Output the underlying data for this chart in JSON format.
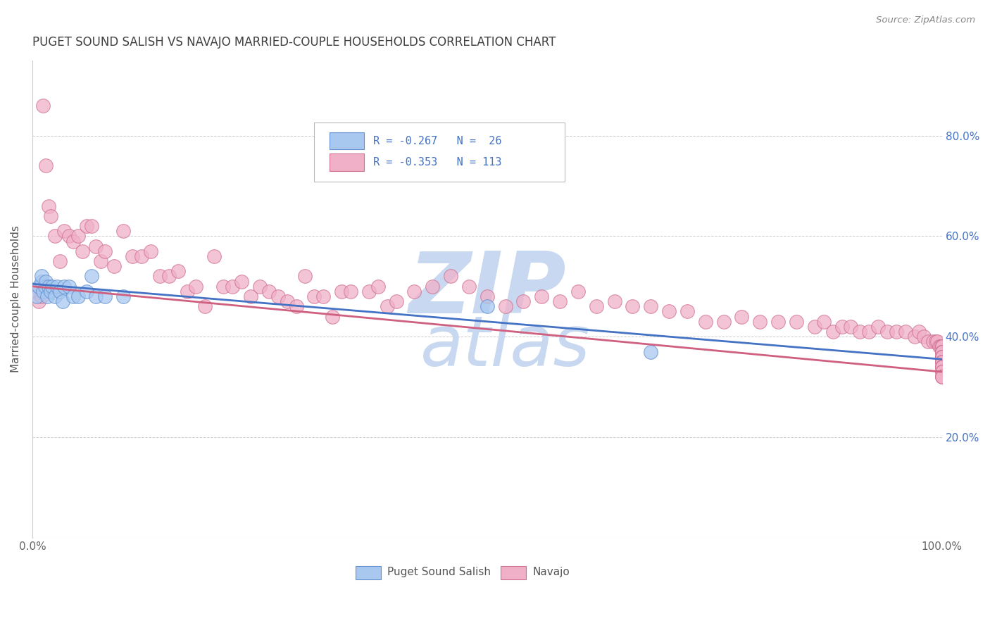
{
  "title": "PUGET SOUND SALISH VS NAVAJO MARRIED-COUPLE HOUSEHOLDS CORRELATION CHART",
  "source": "Source: ZipAtlas.com",
  "ylabel": "Married-couple Households",
  "legend_label1": "Puget Sound Salish",
  "legend_label2": "Navajo",
  "legend_r1": "R = -0.267",
  "legend_n1": "N =  26",
  "legend_r2": "R = -0.353",
  "legend_n2": "N = 113",
  "color_blue": "#a8c8f0",
  "color_pink": "#f0b0c8",
  "color_blue_edge": "#6090d0",
  "color_pink_edge": "#d07090",
  "trendline_blue": "#4472c4",
  "trendline_pink": "#d06080",
  "watermark_color": "#c8d8f0",
  "background": "#ffffff",
  "grid_color": "#cccccc",
  "title_color": "#404040",
  "right_axis_color": "#4472c4",
  "puget_x": [
    0.005,
    0.007,
    0.01,
    0.01,
    0.012,
    0.014,
    0.015,
    0.016,
    0.018,
    0.02,
    0.022,
    0.025,
    0.027,
    0.03,
    0.033,
    0.035,
    0.04,
    0.045,
    0.05,
    0.06,
    0.065,
    0.07,
    0.08,
    0.1,
    0.5,
    0.68
  ],
  "puget_y": [
    0.48,
    0.5,
    0.51,
    0.52,
    0.49,
    0.5,
    0.51,
    0.48,
    0.5,
    0.49,
    0.5,
    0.48,
    0.5,
    0.49,
    0.47,
    0.5,
    0.5,
    0.48,
    0.48,
    0.49,
    0.52,
    0.48,
    0.48,
    0.48,
    0.46,
    0.37
  ],
  "navajo_x": [
    0.005,
    0.007,
    0.01,
    0.012,
    0.015,
    0.018,
    0.02,
    0.025,
    0.03,
    0.035,
    0.04,
    0.045,
    0.05,
    0.055,
    0.06,
    0.065,
    0.07,
    0.075,
    0.08,
    0.09,
    0.1,
    0.11,
    0.12,
    0.13,
    0.14,
    0.15,
    0.16,
    0.17,
    0.18,
    0.19,
    0.2,
    0.21,
    0.22,
    0.23,
    0.24,
    0.25,
    0.26,
    0.27,
    0.28,
    0.29,
    0.3,
    0.31,
    0.32,
    0.33,
    0.34,
    0.35,
    0.37,
    0.38,
    0.39,
    0.4,
    0.42,
    0.44,
    0.46,
    0.48,
    0.5,
    0.52,
    0.54,
    0.56,
    0.58,
    0.6,
    0.62,
    0.64,
    0.66,
    0.68,
    0.7,
    0.72,
    0.74,
    0.76,
    0.78,
    0.8,
    0.82,
    0.84,
    0.86,
    0.87,
    0.88,
    0.89,
    0.9,
    0.91,
    0.92,
    0.93,
    0.94,
    0.95,
    0.96,
    0.97,
    0.975,
    0.98,
    0.985,
    0.99,
    0.993,
    0.995,
    0.997,
    0.999,
    1.0,
    1.0,
    1.0,
    1.0,
    1.0,
    1.0,
    1.0,
    1.0,
    1.0,
    1.0,
    1.0,
    1.0,
    1.0,
    1.0,
    1.0,
    1.0,
    1.0,
    1.0,
    1.0,
    1.0,
    1.0
  ],
  "navajo_y": [
    0.49,
    0.47,
    0.48,
    0.86,
    0.74,
    0.66,
    0.64,
    0.6,
    0.55,
    0.61,
    0.6,
    0.59,
    0.6,
    0.57,
    0.62,
    0.62,
    0.58,
    0.55,
    0.57,
    0.54,
    0.61,
    0.56,
    0.56,
    0.57,
    0.52,
    0.52,
    0.53,
    0.49,
    0.5,
    0.46,
    0.56,
    0.5,
    0.5,
    0.51,
    0.48,
    0.5,
    0.49,
    0.48,
    0.47,
    0.46,
    0.52,
    0.48,
    0.48,
    0.44,
    0.49,
    0.49,
    0.49,
    0.5,
    0.46,
    0.47,
    0.49,
    0.5,
    0.52,
    0.5,
    0.48,
    0.46,
    0.47,
    0.48,
    0.47,
    0.49,
    0.46,
    0.47,
    0.46,
    0.46,
    0.45,
    0.45,
    0.43,
    0.43,
    0.44,
    0.43,
    0.43,
    0.43,
    0.42,
    0.43,
    0.41,
    0.42,
    0.42,
    0.41,
    0.41,
    0.42,
    0.41,
    0.41,
    0.41,
    0.4,
    0.41,
    0.4,
    0.39,
    0.39,
    0.39,
    0.39,
    0.38,
    0.38,
    0.38,
    0.38,
    0.37,
    0.37,
    0.37,
    0.37,
    0.36,
    0.36,
    0.36,
    0.36,
    0.35,
    0.35,
    0.35,
    0.34,
    0.34,
    0.34,
    0.33,
    0.33,
    0.32,
    0.32,
    0.32
  ],
  "puget_trend_x0": 0.0,
  "puget_trend_y0": 0.505,
  "puget_trend_x1": 1.0,
  "puget_trend_y1": 0.355,
  "navajo_trend_x0": 0.0,
  "navajo_trend_y0": 0.5,
  "navajo_trend_x1": 1.0,
  "navajo_trend_y1": 0.33,
  "xlim": [
    0.0,
    1.0
  ],
  "ylim": [
    0.0,
    0.95
  ],
  "ytick_vals": [
    0.0,
    0.2,
    0.4,
    0.6,
    0.8
  ],
  "right_ytick_vals": [
    0.2,
    0.4,
    0.6,
    0.8
  ],
  "right_ytick_labels": [
    "20.0%",
    "40.0%",
    "60.0%",
    "80.0%"
  ]
}
